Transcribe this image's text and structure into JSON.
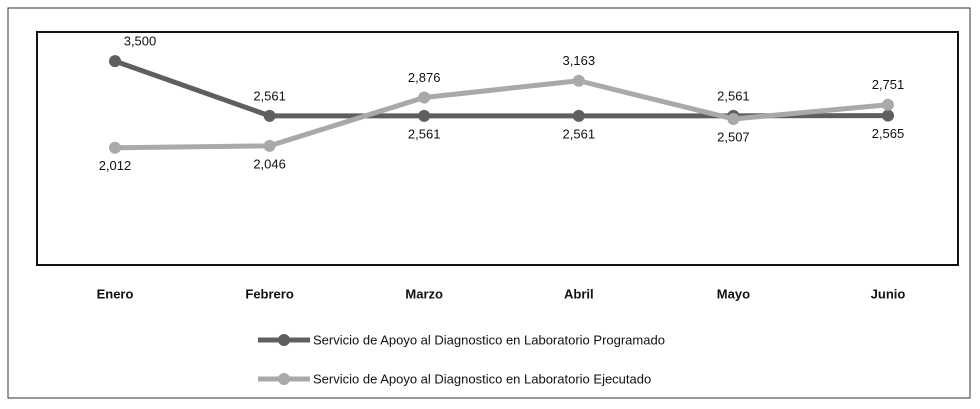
{
  "chart_data": {
    "type": "line",
    "categories": [
      "Enero",
      "Febrero",
      "Marzo",
      "Abril",
      "Mayo",
      "Junio"
    ],
    "series": [
      {
        "name": "Servicio de Apoyo al Diagnostico en Laboratorio Programado",
        "color": "#5f5f5f",
        "values": [
          3500,
          2561,
          2561,
          2561,
          2561,
          2565
        ],
        "value_labels": [
          "3,500",
          "2,561",
          "2,561",
          "2,561",
          "2,561",
          "2,565"
        ]
      },
      {
        "name": "Servicio de Apoyo al Diagnostico en Laboratorio Ejecutado",
        "color": "#a9a9a9",
        "values": [
          2012,
          2046,
          2876,
          3163,
          2507,
          2751
        ],
        "value_labels": [
          "2,012",
          "2,046",
          "2,876",
          "3,163",
          "2,507",
          "2,751"
        ]
      }
    ],
    "ylim": [
      0,
      4000
    ]
  }
}
